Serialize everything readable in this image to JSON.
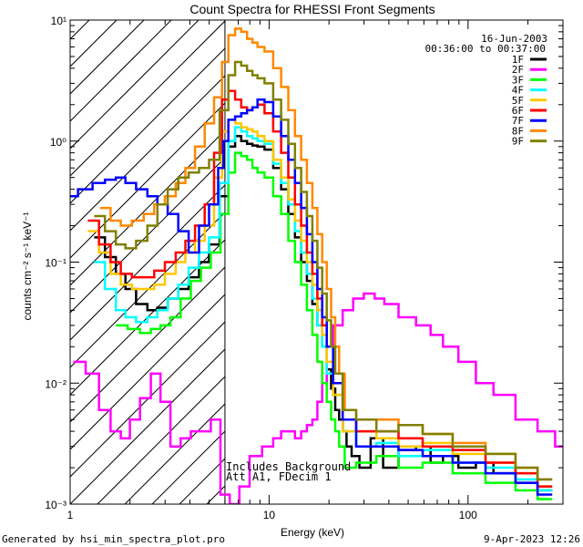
{
  "footer": {
    "generated_by": "Generated by hsi_min_spectra_plot.pro",
    "timestamp": "9-Apr-2023 12:26"
  },
  "chart_data": {
    "type": "line",
    "title": "Count Spectra for RHESSI Front Segments",
    "xlabel": "Energy (keV)",
    "ylabel": "counts cm⁻² s⁻¹ keV⁻¹",
    "xscale": "log",
    "yscale": "log",
    "xlim": [
      1,
      300
    ],
    "ylim": [
      0.001,
      10
    ],
    "x_tick_labels": [
      "1",
      "10",
      "100"
    ],
    "y_tick_labels": [
      "10⁻³",
      "10⁻²",
      "10⁻¹",
      "10⁰",
      "10¹"
    ],
    "hatched_region_keV": [
      1,
      6
    ],
    "info_date": "16-Jun-2003",
    "info_time": "00:36:00 to 00:37:00",
    "annotation_line1": "Includes Background",
    "annotation_line2": "Att A1, FDecim 1",
    "series": [
      {
        "name": "1F",
        "color": "#000000",
        "x": [
          1.4,
          1.6,
          1.8,
          2.0,
          2.3,
          2.6,
          2.9,
          3.3,
          3.7,
          4.2,
          4.7,
          5.3,
          6.0,
          6.5,
          7.0,
          7.5,
          8.0,
          8.5,
          9.0,
          10,
          11,
          12,
          13,
          14,
          15,
          16,
          17,
          18,
          19,
          20,
          21,
          22,
          23,
          24,
          25,
          27,
          30,
          35,
          40,
          50,
          60,
          70,
          80,
          100,
          120,
          150,
          200,
          250
        ],
        "y": [
          0.16,
          0.11,
          0.08,
          0.06,
          0.045,
          0.04,
          0.042,
          0.05,
          0.06,
          0.075,
          0.1,
          0.14,
          0.35,
          0.9,
          1.1,
          1.0,
          0.95,
          0.92,
          0.9,
          0.85,
          0.6,
          0.4,
          0.25,
          0.16,
          0.1,
          0.07,
          0.045,
          0.03,
          0.02,
          0.013,
          0.009,
          0.006,
          0.005,
          0.004,
          0.003,
          0.0025,
          0.002,
          0.0035,
          0.002,
          0.0028,
          0.003,
          0.0022,
          0.0025,
          0.002,
          0.0022,
          0.0018,
          0.0015,
          0.0013
        ]
      },
      {
        "name": "2F",
        "color": "#ff00ff",
        "x": [
          1.1,
          1.3,
          1.5,
          1.7,
          1.9,
          2.1,
          2.4,
          2.7,
          3.0,
          3.4,
          3.8,
          4.3,
          4.8,
          5.4,
          6.0,
          6.7,
          7.5,
          8.5,
          10,
          11,
          12,
          13,
          14,
          15,
          16,
          17,
          18,
          19,
          20,
          22,
          25,
          28,
          32,
          36,
          40,
          50,
          60,
          70,
          80,
          100,
          120,
          150,
          200,
          250,
          300
        ],
        "y": [
          0.015,
          0.012,
          0.006,
          0.004,
          0.0035,
          0.005,
          0.0075,
          0.012,
          0.007,
          0.003,
          0.0035,
          0.004,
          0.004,
          0.005,
          0.0012,
          0.001,
          0.0014,
          0.0025,
          0.003,
          0.0035,
          0.004,
          0.004,
          0.0035,
          0.004,
          0.0045,
          0.005,
          0.007,
          0.01,
          0.02,
          0.03,
          0.04,
          0.05,
          0.055,
          0.05,
          0.045,
          0.035,
          0.03,
          0.025,
          0.02,
          0.015,
          0.01,
          0.008,
          0.005,
          0.004,
          0.003
        ]
      },
      {
        "name": "3F",
        "color": "#00ff00",
        "x": [
          1.8,
          2.1,
          2.4,
          2.7,
          3.0,
          3.4,
          3.8,
          4.3,
          4.8,
          5.4,
          6.0,
          6.5,
          7.0,
          7.5,
          8.0,
          8.5,
          9.0,
          10,
          11,
          12,
          13,
          14,
          15,
          16,
          17,
          18,
          19,
          20,
          21,
          22,
          23,
          25,
          30,
          40,
          50,
          70,
          100,
          150,
          200,
          250
        ],
        "y": [
          0.03,
          0.028,
          0.026,
          0.028,
          0.03,
          0.035,
          0.05,
          0.07,
          0.09,
          0.12,
          0.25,
          0.55,
          0.8,
          0.75,
          0.7,
          0.6,
          0.55,
          0.5,
          0.35,
          0.25,
          0.15,
          0.1,
          0.065,
          0.04,
          0.025,
          0.015,
          0.01,
          0.007,
          0.005,
          0.004,
          0.003,
          0.002,
          0.0022,
          0.0025,
          0.002,
          0.0022,
          0.0018,
          0.0015,
          0.0013,
          0.0011
        ]
      },
      {
        "name": "4F",
        "color": "#00ffff",
        "x": [
          1.4,
          1.6,
          1.8,
          2.0,
          2.3,
          2.6,
          2.9,
          3.3,
          3.7,
          4.2,
          4.7,
          5.3,
          6.0,
          6.5,
          7.0,
          7.5,
          8.0,
          8.5,
          9.0,
          10,
          11,
          12,
          13,
          14,
          15,
          16,
          17,
          18,
          19,
          20,
          22,
          25,
          30,
          40,
          50,
          70,
          100,
          150,
          200,
          250
        ],
        "y": [
          0.1,
          0.06,
          0.04,
          0.035,
          0.032,
          0.035,
          0.04,
          0.05,
          0.065,
          0.09,
          0.12,
          0.16,
          0.45,
          1.0,
          1.3,
          1.2,
          1.1,
          1.05,
          1.0,
          0.95,
          0.65,
          0.45,
          0.3,
          0.18,
          0.12,
          0.08,
          0.05,
          0.03,
          0.02,
          0.012,
          0.008,
          0.004,
          0.003,
          0.0032,
          0.0025,
          0.0028,
          0.0022,
          0.002,
          0.0016,
          0.0013
        ]
      },
      {
        "name": "5F",
        "color": "#ffc800",
        "x": [
          1.3,
          1.5,
          1.7,
          1.9,
          2.2,
          2.5,
          2.8,
          3.2,
          3.6,
          4.0,
          4.5,
          5.0,
          5.6,
          6.0,
          6.5,
          7.0,
          7.5,
          8.0,
          8.5,
          9.0,
          10,
          11,
          12,
          13,
          14,
          15,
          16,
          17,
          18,
          19,
          20,
          22,
          25,
          30,
          40,
          50,
          70,
          100,
          150,
          200,
          250
        ],
        "y": [
          0.18,
          0.12,
          0.08,
          0.065,
          0.06,
          0.06,
          0.065,
          0.08,
          0.1,
          0.12,
          0.15,
          0.2,
          0.5,
          1.2,
          1.5,
          1.4,
          1.3,
          1.25,
          1.2,
          1.1,
          1.0,
          0.7,
          0.5,
          0.33,
          0.22,
          0.15,
          0.1,
          0.065,
          0.04,
          0.025,
          0.015,
          0.008,
          0.004,
          0.004,
          0.0035,
          0.003,
          0.0032,
          0.0026,
          0.0022,
          0.0018,
          0.0014
        ]
      },
      {
        "name": "6F",
        "color": "#ff0000",
        "x": [
          1.3,
          1.5,
          1.7,
          1.9,
          2.2,
          2.5,
          2.8,
          3.2,
          3.6,
          4.0,
          4.5,
          5.0,
          5.6,
          6.0,
          6.5,
          7.0,
          7.5,
          8.0,
          8.5,
          9.0,
          10,
          11,
          12,
          13,
          14,
          15,
          16,
          17,
          18,
          19,
          20,
          22,
          25,
          30,
          40,
          50,
          70,
          100,
          150,
          200,
          250
        ],
        "y": [
          0.22,
          0.14,
          0.1,
          0.08,
          0.075,
          0.075,
          0.085,
          0.1,
          0.12,
          0.15,
          0.2,
          0.3,
          0.8,
          2.2,
          2.6,
          2.2,
          1.9,
          1.8,
          1.9,
          2.0,
          1.7,
          1.2,
          0.8,
          0.5,
          0.3,
          0.2,
          0.12,
          0.08,
          0.05,
          0.03,
          0.02,
          0.01,
          0.005,
          0.004,
          0.004,
          0.0035,
          0.003,
          0.0028,
          0.0022,
          0.0018,
          0.0014
        ]
      },
      {
        "name": "7F",
        "color": "#0000ff",
        "x": [
          1.0,
          1.2,
          1.4,
          1.6,
          1.8,
          2.0,
          2.3,
          2.6,
          2.9,
          3.3,
          3.7,
          4.2,
          4.7,
          5.3,
          5.8,
          6.0,
          6.5,
          7.0,
          7.5,
          8.0,
          8.5,
          9.0,
          10,
          11,
          12,
          13,
          14,
          15,
          16,
          17,
          18,
          19,
          20,
          22,
          25,
          30,
          40,
          50,
          70,
          100,
          150,
          200,
          250
        ],
        "y": [
          0.35,
          0.4,
          0.45,
          0.48,
          0.5,
          0.45,
          0.4,
          0.35,
          0.3,
          0.25,
          0.18,
          0.12,
          0.2,
          0.3,
          0.6,
          1.0,
          1.5,
          1.6,
          1.7,
          1.8,
          1.9,
          2.2,
          2.1,
          1.6,
          1.1,
          0.7,
          0.45,
          0.28,
          0.17,
          0.1,
          0.06,
          0.035,
          0.02,
          0.01,
          0.005,
          0.003,
          0.003,
          0.0028,
          0.0025,
          0.0022,
          0.0018,
          0.0015,
          0.0012
        ]
      },
      {
        "name": "8F",
        "color": "#ff8800",
        "x": [
          1.5,
          1.7,
          1.9,
          2.2,
          2.5,
          2.8,
          3.2,
          3.6,
          4.0,
          4.5,
          5.0,
          5.6,
          6.0,
          6.5,
          7.0,
          7.5,
          8.0,
          8.5,
          9.0,
          10,
          11,
          12,
          13,
          14,
          15,
          16,
          17,
          18,
          19,
          20,
          21,
          22,
          23,
          25,
          30,
          40,
          50,
          70,
          100,
          150,
          200,
          250
        ],
        "y": [
          0.28,
          0.22,
          0.2,
          0.22,
          0.25,
          0.3,
          0.35,
          0.45,
          0.6,
          0.9,
          1.4,
          2.3,
          4.5,
          7.5,
          8.5,
          8.0,
          7.0,
          6.5,
          6.0,
          5.5,
          4.0,
          2.8,
          1.8,
          1.1,
          0.7,
          0.45,
          0.28,
          0.17,
          0.1,
          0.06,
          0.035,
          0.02,
          0.012,
          0.006,
          0.005,
          0.005,
          0.0045,
          0.0038,
          0.0032,
          0.0026,
          0.002,
          0.0016
        ]
      },
      {
        "name": "9F",
        "color": "#808000",
        "x": [
          1.4,
          1.6,
          1.8,
          2.0,
          2.3,
          2.6,
          2.9,
          3.3,
          3.7,
          4.2,
          4.7,
          5.3,
          6.0,
          6.5,
          7.0,
          7.5,
          8.0,
          8.5,
          9.0,
          10,
          11,
          12,
          13,
          14,
          15,
          16,
          17,
          18,
          19,
          20,
          21,
          22,
          25,
          30,
          40,
          50,
          70,
          100,
          150,
          200,
          250
        ],
        "y": [
          0.24,
          0.18,
          0.14,
          0.13,
          0.15,
          0.2,
          0.3,
          0.4,
          0.5,
          0.55,
          0.6,
          0.7,
          1.8,
          3.5,
          4.5,
          4.2,
          3.8,
          3.5,
          3.3,
          3.0,
          2.2,
          1.5,
          0.95,
          0.6,
          0.38,
          0.24,
          0.15,
          0.09,
          0.055,
          0.033,
          0.02,
          0.012,
          0.006,
          0.005,
          0.004,
          0.0045,
          0.0038,
          0.003,
          0.0026,
          0.002,
          0.0016
        ]
      }
    ]
  }
}
